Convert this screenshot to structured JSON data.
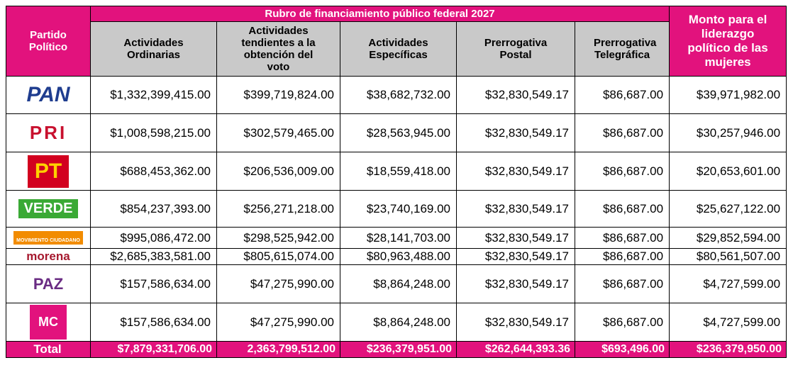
{
  "header": {
    "title": "Rubro de financiamiento público federal 2027",
    "party_column": "Partido Político",
    "columns": [
      "Actividades Ordinarias",
      "Actividades tendientes a la obtención del voto",
      "Actividades Específicas",
      "Prerrogativa Postal",
      "Prerrogativa Telegráfica"
    ],
    "last_column": "Monto para el liderazgo político de las mujeres"
  },
  "table": {
    "rows": [
      {
        "logo": "PAN",
        "values": [
          "$1,332,399,415.00",
          "$399,719,824.00",
          "$38,682,732.00",
          "$32,830,549.17",
          "$86,687.00",
          "$39,971,982.00"
        ]
      },
      {
        "logo": "PRI",
        "values": [
          "$1,008,598,215.00",
          "$302,579,465.00",
          "$28,563,945.00",
          "$32,830,549.17",
          "$86,687.00",
          "$30,257,946.00"
        ]
      },
      {
        "logo": "PT",
        "values": [
          "$688,453,362.00",
          "$206,536,009.00",
          "$18,559,418.00",
          "$32,830,549.17",
          "$86,687.00",
          "$20,653,601.00"
        ]
      },
      {
        "logo": "VERDE",
        "values": [
          "$854,237,393.00",
          "$256,271,218.00",
          "$23,740,169.00",
          "$32,830,549.17",
          "$86,687.00",
          "$25,627,122.00"
        ]
      },
      {
        "logo": "MOVIMIENTO CIUDADANO",
        "values": [
          "$995,086,472.00",
          "$298,525,942.00",
          "$28,141,703.00",
          "$32,830,549.17",
          "$86,687.00",
          "$29,852,594.00"
        ]
      },
      {
        "logo": "morena",
        "values": [
          "$2,685,383,581.00",
          "$805,615,074.00",
          "$80,963,488.00",
          "$32,830,549.17",
          "$86,687.00",
          "$80,561,507.00"
        ]
      },
      {
        "logo": "PAZ",
        "values": [
          "$157,586,634.00",
          "$47,275,990.00",
          "$8,864,248.00",
          "$32,830,549.17",
          "$86,687.00",
          "$4,727,599.00"
        ]
      },
      {
        "logo": "MC",
        "values": [
          "$157,586,634.00",
          "$47,275,990.00",
          "$8,864,248.00",
          "$32,830,549.17",
          "$86,687.00",
          "$4,727,599.00"
        ]
      }
    ],
    "total": {
      "label": "Total",
      "values": [
        "$7,879,331,706.00",
        "2,363,799,512.00",
        "$236,379,951.00",
        "$262,644,393.36",
        "$693,496.00",
        "$236,379,950.00"
      ]
    }
  }
}
